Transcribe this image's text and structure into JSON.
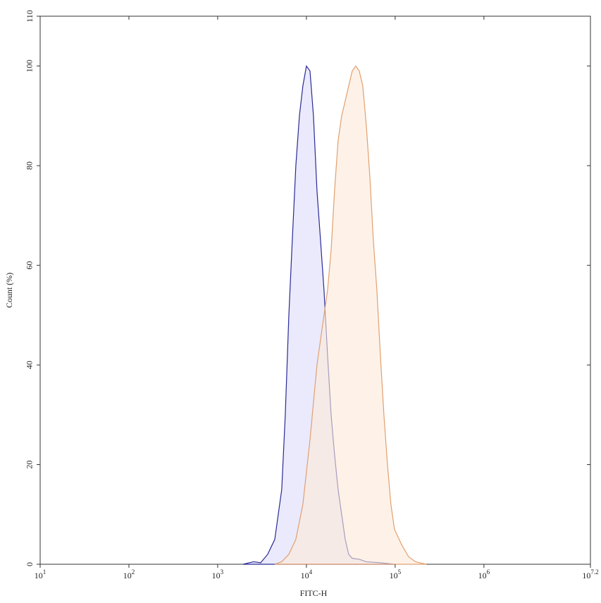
{
  "chart_data": {
    "type": "area",
    "x_label": "FITC-H",
    "y_label": "Count (%)",
    "xscale": "log",
    "xlim": [
      10,
      15848932
    ],
    "ylim": [
      0,
      110
    ],
    "xticks": [
      {
        "value": 10,
        "label": "10^1"
      },
      {
        "value": 100,
        "label": "10^2"
      },
      {
        "value": 1000,
        "label": "10^3"
      },
      {
        "value": 10000,
        "label": "10^4"
      },
      {
        "value": 100000,
        "label": "10^5"
      },
      {
        "value": 1000000,
        "label": "10^6"
      },
      {
        "value": 15848932,
        "label": "10^7.2"
      }
    ],
    "yticks": [
      0,
      20,
      40,
      60,
      80,
      100,
      110
    ],
    "series": [
      {
        "color": "#2a2a96",
        "fill": "#dcdcfa",
        "x": [
          1930,
          2540,
          3050,
          3660,
          4400,
          5270,
          5780,
          6340,
          6930,
          7600,
          8340,
          9120,
          10000,
          10970,
          12000,
          13150,
          14420,
          15780,
          17300,
          18970,
          20750,
          22750,
          24950,
          27350,
          29920,
          32810,
          39360,
          47320,
          68080,
          98180
        ],
        "values": [
          0,
          0.5,
          0.3,
          2,
          5,
          15,
          30,
          50,
          65,
          80,
          90,
          96,
          100,
          99,
          90,
          75,
          65,
          55,
          42,
          30,
          22,
          15,
          10,
          5,
          2,
          1.2,
          1,
          0.5,
          0.3,
          0
        ]
      },
      {
        "color": "#e0a070",
        "fill": "#fde9d8",
        "x": [
          4400,
          5270,
          6340,
          7600,
          9120,
          10970,
          13150,
          15780,
          17300,
          18970,
          20750,
          22750,
          24950,
          27350,
          29920,
          32810,
          35980,
          39360,
          43150,
          47320,
          51760,
          56750,
          62230,
          68080,
          74650,
          81850,
          89540,
          98180,
          117760,
          141580,
          169820,
          223360
        ],
        "values": [
          0,
          0.5,
          2,
          5,
          12,
          25,
          40,
          50,
          55,
          63,
          75,
          85,
          90,
          93,
          96,
          99,
          100,
          99,
          96,
          88,
          78,
          65,
          55,
          42,
          30,
          20,
          12,
          7,
          4,
          1.5,
          0.5,
          0
        ]
      }
    ]
  }
}
